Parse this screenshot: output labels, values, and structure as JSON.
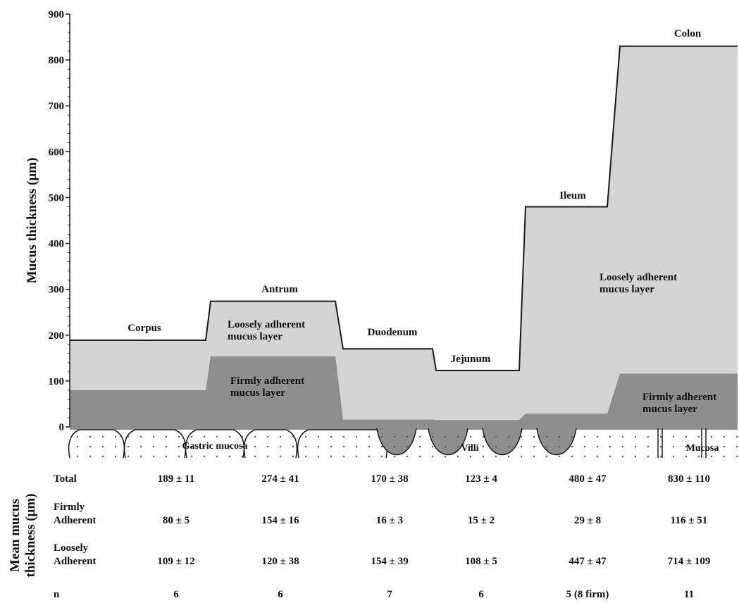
{
  "chart_data": {
    "type": "area",
    "ylabel": "Mucus thickness (μm)",
    "ylim": [
      0,
      900
    ],
    "yticks": [
      0,
      100,
      200,
      300,
      400,
      500,
      600,
      700,
      800,
      900
    ],
    "regions": [
      {
        "name": "Corpus",
        "total": 189,
        "firm": 80,
        "loose": 109
      },
      {
        "name": "Antrum",
        "total": 274,
        "firm": 154,
        "loose": 120
      },
      {
        "name": "Duodenum",
        "total": 170,
        "firm": 16,
        "loose": 154
      },
      {
        "name": "Jejunum",
        "total": 123,
        "firm": 15,
        "loose": 108
      },
      {
        "name": "Ileum",
        "total": 480,
        "firm": 29,
        "loose": 447
      },
      {
        "name": "Colon",
        "total": 830,
        "firm": 116,
        "loose": 714
      }
    ],
    "layer_labels": {
      "loose_antrum": [
        "Loosely adherent",
        "mucus layer"
      ],
      "firm_antrum": [
        "Firmly adherent",
        "mucus layer"
      ],
      "loose_ileum": [
        "Loosely adherent",
        "mucus layer"
      ],
      "firm_colon": [
        "Firmly adherent",
        "mucus layer"
      ]
    },
    "mucosa_labels": {
      "gastric": "Gastric mucosa",
      "villi": "Villi",
      "mucosa": "Mucosa"
    },
    "colors": {
      "loose": "#d4d4d4",
      "firm": "#8e8e8e",
      "outline": "#1a1a1a",
      "mucosa_dots": "#555555"
    }
  },
  "table": {
    "side_label": [
      "Mean mucus",
      "thickness (μm)"
    ],
    "rows": [
      {
        "label": [
          "Total"
        ],
        "values": [
          "189 ± 11",
          "274 ± 41",
          "170 ± 38",
          "123 ± 4",
          "480 ± 47",
          "830 ± 110"
        ]
      },
      {
        "label": [
          "Firmly",
          "Adherent"
        ],
        "values": [
          "80 ± 5",
          "154 ± 16",
          "16 ± 3",
          "15 ± 2",
          "29 ± 8",
          "116 ± 51"
        ]
      },
      {
        "label": [
          "Loosely",
          "Adherent"
        ],
        "values": [
          "109 ± 12",
          "120 ± 38",
          "154 ± 39",
          "108 ± 5",
          "447 ± 47",
          "714 ± 109"
        ]
      },
      {
        "label": [
          "n"
        ],
        "values": [
          "6",
          "6",
          "7",
          "6",
          "5 (8 firm)",
          "11"
        ]
      }
    ]
  }
}
